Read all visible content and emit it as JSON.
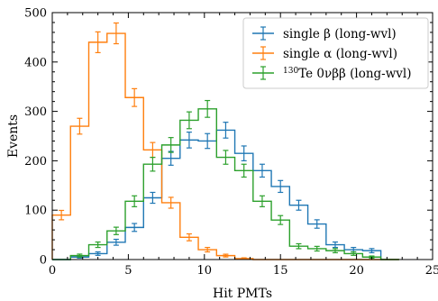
{
  "chart_data": {
    "type": "histogram",
    "xlabel": "Hit PMTs",
    "ylabel": "Events",
    "xlim": [
      0,
      25
    ],
    "ylim": [
      0,
      500
    ],
    "bin_width": 1.2,
    "x_ticks": [
      0,
      5,
      10,
      15,
      20,
      25
    ],
    "y_ticks": [
      0,
      100,
      200,
      300,
      400,
      500
    ],
    "grid": false,
    "legend_position": "top-right",
    "legend": [
      {
        "prefix": "",
        "sup": "",
        "label": "single β (long-wvl)",
        "color": "#1f77b4"
      },
      {
        "prefix": "",
        "sup": "",
        "label": "single α (long-wvl)",
        "color": "#ff7f0e"
      },
      {
        "prefix": "",
        "sup": "130",
        "label": "Te 0νββ (long-wvl)",
        "color": "#2ca02c"
      }
    ],
    "series": [
      {
        "name": "single β (long-wvl)",
        "color": "#1f77b4",
        "bin_edges": [
          0,
          1.2,
          2.4,
          3.6,
          4.8,
          6.0,
          7.2,
          8.4,
          9.6,
          10.8,
          12.0,
          13.2,
          14.4,
          15.6,
          16.8,
          18.0,
          19.2,
          20.4,
          21.6,
          22.8
        ],
        "values": [
          0,
          5,
          12,
          35,
          65,
          125,
          205,
          242,
          240,
          262,
          215,
          180,
          148,
          110,
          72,
          30,
          20,
          18,
          0
        ],
        "errors": [
          0,
          2,
          3.5,
          6,
          8,
          11,
          14,
          16,
          15,
          16,
          15,
          13,
          12,
          10,
          8.5,
          5.5,
          4.5,
          4.2,
          0
        ]
      },
      {
        "name": "single α (long-wvl)",
        "color": "#ff7f0e",
        "bin_edges": [
          0,
          1.2,
          2.4,
          3.6,
          4.8,
          6.0,
          7.2,
          8.4,
          9.6,
          10.8,
          12.0,
          13.2,
          14.4,
          15.6,
          16.8,
          18.0,
          19.2,
          20.4,
          21.6,
          22.8
        ],
        "values": [
          90,
          270,
          440,
          458,
          328,
          222,
          115,
          45,
          20,
          8,
          2,
          0,
          0,
          0,
          0,
          0,
          0,
          0,
          0
        ],
        "errors": [
          9.5,
          16,
          21,
          21,
          18,
          15,
          11,
          7,
          4.5,
          2.8,
          1.5,
          0,
          0,
          0,
          0,
          0,
          0,
          0,
          0
        ]
      },
      {
        "name": "130Te 0νββ (long-wvl)",
        "color": "#2ca02c",
        "bin_edges": [
          0,
          1.2,
          2.4,
          3.6,
          4.8,
          6.0,
          7.2,
          8.4,
          9.6,
          10.8,
          12.0,
          13.2,
          14.4,
          15.6,
          16.8,
          18.0,
          19.2,
          20.4,
          21.6,
          22.8
        ],
        "values": [
          0,
          8,
          30,
          58,
          118,
          193,
          232,
          282,
          305,
          207,
          180,
          118,
          80,
          27,
          22,
          18,
          12,
          5,
          0
        ],
        "errors": [
          0,
          3,
          5.5,
          7.5,
          11,
          14,
          15,
          17,
          17,
          14,
          13,
          11,
          9,
          5,
          4.7,
          4.2,
          3.5,
          2.2,
          0
        ]
      }
    ]
  }
}
